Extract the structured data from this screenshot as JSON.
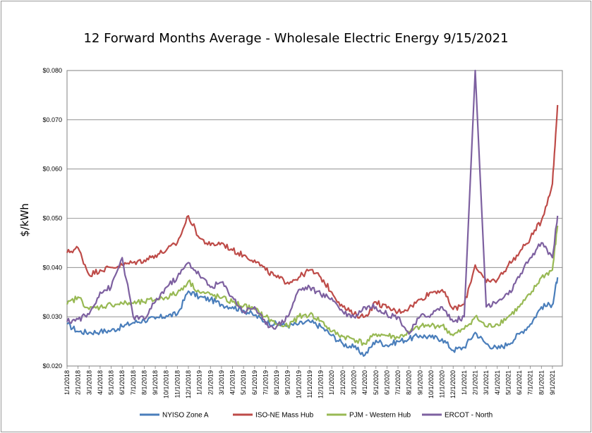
{
  "chart_data": {
    "type": "line",
    "title": "12 Forward Months Average - Wholesale Electric Energy 9/15/2021",
    "ylabel": "$/kWh",
    "xlabel": "",
    "ylim": [
      0.02,
      0.08
    ],
    "y_ticks": [
      "$0.020",
      "$0.030",
      "$0.040",
      "$0.050",
      "$0.060",
      "$0.070",
      "$0.080"
    ],
    "x_ticks": [
      "1/1/2018",
      "2/1/2018",
      "3/1/2018",
      "4/1/2018",
      "5/1/2018",
      "6/1/2018",
      "7/1/2018",
      "8/1/2018",
      "9/1/2018",
      "10/1/2018",
      "11/1/2018",
      "12/1/2018",
      "1/1/2019",
      "2/1/2019",
      "3/1/2019",
      "4/1/2019",
      "5/1/2019",
      "6/1/2019",
      "7/1/2019",
      "8/1/2019",
      "9/1/2019",
      "10/1/2019",
      "11/1/2019",
      "12/1/2019",
      "1/1/2020",
      "2/1/2020",
      "3/1/2020",
      "4/1/2020",
      "5/1/2020",
      "6/1/2020",
      "7/1/2020",
      "8/1/2020",
      "9/1/2020",
      "10/1/2020",
      "11/1/2020",
      "12/1/2020",
      "1/1/2021",
      "2/1/2021",
      "3/1/2021",
      "4/1/2021",
      "5/1/2021",
      "6/1/2021",
      "7/1/2021",
      "8/1/2021",
      "9/1/2021"
    ],
    "grid": "horizontal",
    "legend_position": "bottom",
    "x": [
      "2018-01",
      "2018-02",
      "2018-03",
      "2018-04",
      "2018-05",
      "2018-06",
      "2018-07",
      "2018-08",
      "2018-09",
      "2018-10",
      "2018-11",
      "2018-12",
      "2019-01",
      "2019-02",
      "2019-03",
      "2019-04",
      "2019-05",
      "2019-06",
      "2019-07",
      "2019-08",
      "2019-09",
      "2019-10",
      "2019-11",
      "2019-12",
      "2020-01",
      "2020-02",
      "2020-03",
      "2020-04",
      "2020-05",
      "2020-06",
      "2020-07",
      "2020-08",
      "2020-09",
      "2020-10",
      "2020-11",
      "2020-12",
      "2021-01",
      "2021-02",
      "2021-03",
      "2021-04",
      "2021-05",
      "2021-06",
      "2021-07",
      "2021-08",
      "2021-09",
      "2021-09-15"
    ],
    "series": [
      {
        "name": "NYISO Zone A",
        "color": "#4a7ebb",
        "values": [
          0.0285,
          0.027,
          0.0268,
          0.027,
          0.0272,
          0.028,
          0.0288,
          0.0293,
          0.0296,
          0.0302,
          0.0305,
          0.0352,
          0.034,
          0.0335,
          0.0325,
          0.032,
          0.0313,
          0.0303,
          0.029,
          0.0285,
          0.0282,
          0.0285,
          0.029,
          0.028,
          0.0262,
          0.0245,
          0.0238,
          0.0222,
          0.0252,
          0.0242,
          0.025,
          0.0255,
          0.0262,
          0.0258,
          0.0255,
          0.0232,
          0.0238,
          0.0268,
          0.0245,
          0.0235,
          0.0245,
          0.0265,
          0.0285,
          0.032,
          0.0325,
          0.038
        ]
      },
      {
        "name": "ISO-NE Mass Hub",
        "color": "#be4b48",
        "values": [
          0.043,
          0.044,
          0.0385,
          0.0395,
          0.04,
          0.0405,
          0.041,
          0.0415,
          0.0425,
          0.0435,
          0.045,
          0.0505,
          0.046,
          0.0445,
          0.045,
          0.0435,
          0.0425,
          0.0415,
          0.0395,
          0.038,
          0.037,
          0.038,
          0.0395,
          0.038,
          0.035,
          0.032,
          0.0305,
          0.03,
          0.033,
          0.0318,
          0.031,
          0.0318,
          0.0335,
          0.035,
          0.0355,
          0.0315,
          0.0325,
          0.0405,
          0.037,
          0.0375,
          0.0405,
          0.043,
          0.046,
          0.0495,
          0.057,
          0.073
        ]
      },
      {
        "name": "PJM - Western Hub",
        "color": "#98b954",
        "values": [
          0.0325,
          0.034,
          0.0315,
          0.032,
          0.0325,
          0.0327,
          0.0327,
          0.033,
          0.0335,
          0.034,
          0.0348,
          0.0372,
          0.035,
          0.0345,
          0.0338,
          0.033,
          0.0322,
          0.0315,
          0.03,
          0.0285,
          0.028,
          0.03,
          0.0305,
          0.0292,
          0.027,
          0.026,
          0.0255,
          0.0245,
          0.0265,
          0.0262,
          0.0258,
          0.0268,
          0.028,
          0.0282,
          0.0282,
          0.0262,
          0.0275,
          0.03,
          0.028,
          0.0285,
          0.03,
          0.032,
          0.0345,
          0.038,
          0.0395,
          0.0485
        ]
      },
      {
        "name": "ERCOT - North",
        "color": "#7d60a0",
        "values": [
          0.029,
          0.0295,
          0.0305,
          0.035,
          0.036,
          0.042,
          0.03,
          0.0295,
          0.033,
          0.036,
          0.038,
          0.041,
          0.0385,
          0.036,
          0.037,
          0.034,
          0.031,
          0.032,
          0.0285,
          0.028,
          0.03,
          0.0355,
          0.036,
          0.0345,
          0.0338,
          0.031,
          0.03,
          0.032,
          0.032,
          0.0305,
          0.03,
          0.0265,
          0.03,
          0.0305,
          0.032,
          0.029,
          0.03,
          0.08,
          0.032,
          0.033,
          0.0345,
          0.038,
          0.042,
          0.045,
          0.042,
          0.0505
        ]
      }
    ]
  }
}
